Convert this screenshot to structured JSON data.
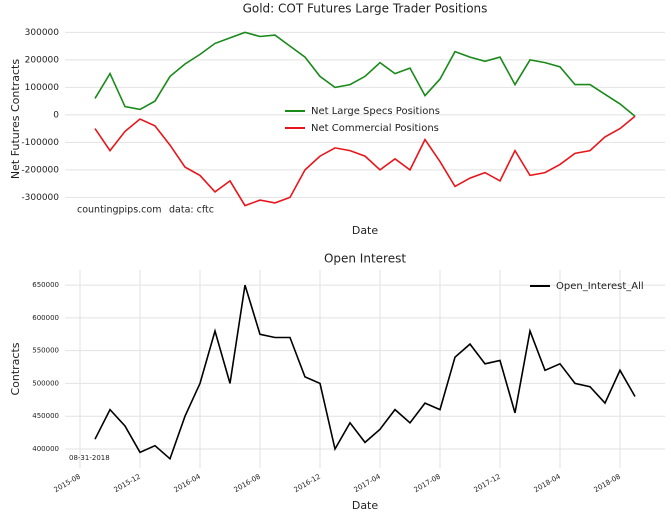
{
  "chart_data": [
    {
      "type": "line",
      "title": "Gold: COT Futures Large Trader Positions",
      "xlabel": "Date",
      "ylabel": "Net Futures Contracts",
      "annotations": [
        "countingpips.com",
        "data: cftc"
      ],
      "legend": "center",
      "grid": true,
      "x": [
        "2015-09",
        "2015-10",
        "2015-11",
        "2015-12",
        "2016-01",
        "2016-02",
        "2016-03",
        "2016-04",
        "2016-05",
        "2016-06",
        "2016-07",
        "2016-08",
        "2016-09",
        "2016-10",
        "2016-11",
        "2016-12",
        "2017-01",
        "2017-02",
        "2017-03",
        "2017-04",
        "2017-05",
        "2017-06",
        "2017-07",
        "2017-08",
        "2017-09",
        "2017-10",
        "2017-11",
        "2017-12",
        "2018-01",
        "2018-02",
        "2018-03",
        "2018-04",
        "2018-05",
        "2018-06",
        "2018-07",
        "2018-08",
        "2018-09"
      ],
      "xlim": [
        "2015-07",
        "2018-11"
      ],
      "ylim": [
        -375000,
        345000
      ],
      "yticks": [
        -300000,
        -200000,
        -100000,
        0,
        100000,
        200000,
        300000
      ],
      "series": [
        {
          "name": "Net Large Specs Positions",
          "color": "#1a8a1a",
          "values": [
            60000,
            150000,
            30000,
            20000,
            50000,
            140000,
            185000,
            220000,
            260000,
            280000,
            300000,
            285000,
            290000,
            250000,
            210000,
            140000,
            100000,
            110000,
            140000,
            190000,
            150000,
            170000,
            70000,
            130000,
            230000,
            210000,
            195000,
            210000,
            110000,
            200000,
            190000,
            175000,
            110000,
            110000,
            75000,
            40000,
            -5000
          ]
        },
        {
          "name": "Net Commercial Positions",
          "color": "#e8161b",
          "values": [
            -50000,
            -130000,
            -60000,
            -15000,
            -40000,
            -110000,
            -190000,
            -220000,
            -280000,
            -240000,
            -330000,
            -310000,
            -320000,
            -300000,
            -200000,
            -150000,
            -120000,
            -130000,
            -150000,
            -200000,
            -160000,
            -200000,
            -90000,
            -170000,
            -260000,
            -230000,
            -210000,
            -240000,
            -130000,
            -220000,
            -210000,
            -180000,
            -140000,
            -130000,
            -80000,
            -50000,
            -5000
          ]
        }
      ]
    },
    {
      "type": "line",
      "title": "Open Interest",
      "xlabel": "Date",
      "ylabel": "Contracts",
      "annotations": [
        "08-31-2018"
      ],
      "legend": "upper right",
      "grid": true,
      "x": [
        "2015-09",
        "2015-10",
        "2015-11",
        "2015-12",
        "2016-01",
        "2016-02",
        "2016-03",
        "2016-04",
        "2016-05",
        "2016-06",
        "2016-07",
        "2016-08",
        "2016-09",
        "2016-10",
        "2016-11",
        "2016-12",
        "2017-01",
        "2017-02",
        "2017-03",
        "2017-04",
        "2017-05",
        "2017-06",
        "2017-07",
        "2017-08",
        "2017-09",
        "2017-10",
        "2017-11",
        "2017-12",
        "2018-01",
        "2018-02",
        "2018-03",
        "2018-04",
        "2018-05",
        "2018-06",
        "2018-07",
        "2018-08",
        "2018-09"
      ],
      "xlim": [
        "2015-07",
        "2018-11"
      ],
      "xticks": [
        "2015-08",
        "2015-12",
        "2016-04",
        "2016-08",
        "2016-12",
        "2017-04",
        "2017-08",
        "2017-12",
        "2018-04",
        "2018-08"
      ],
      "ylim": [
        371000,
        673000
      ],
      "yticks": [
        400000,
        450000,
        500000,
        550000,
        600000,
        650000
      ],
      "series": [
        {
          "name": "Open_Interest_All",
          "color": "#000000",
          "values": [
            415000,
            460000,
            435000,
            395000,
            405000,
            385000,
            450000,
            500000,
            580000,
            500000,
            650000,
            575000,
            570000,
            570000,
            510000,
            500000,
            400000,
            440000,
            410000,
            430000,
            460000,
            440000,
            470000,
            460000,
            540000,
            560000,
            530000,
            535000,
            455000,
            580000,
            520000,
            530000,
            500000,
            495000,
            470000,
            520000,
            480000
          ]
        }
      ]
    }
  ]
}
